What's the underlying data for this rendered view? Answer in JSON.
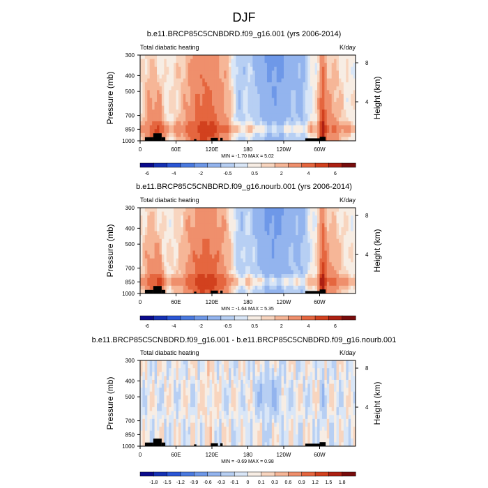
{
  "chart_data": {
    "type": "heatmap",
    "suptitle": "DJF",
    "panels": [
      {
        "title": "b.e11.BRCP85C5CNBDRD.f09_g16.001 (yrs 2006-2014)",
        "left_label": "Total diabatic heating",
        "right_label": "K/day",
        "ylabel": "Pressure (mb)",
        "y2label": "Height (km)",
        "min_max": "MIN =  -1.70  MAX =   5.02",
        "kind": "full",
        "seed": 1,
        "cb_ticks": [
          "-6",
          "-4",
          "-2",
          "-0.5",
          "0.5",
          "2",
          "4",
          "6"
        ],
        "cb_levels": [
          -6,
          -5,
          -4,
          -3,
          -2,
          -1,
          -0.5,
          -0.2,
          0.2,
          0.5,
          1,
          2,
          3,
          4,
          5,
          6
        ]
      },
      {
        "title": "b.e11.BRCP85C5CNBDRD.f09_g16.nourb.001 (yrs 2006-2014)",
        "left_label": "Total diabatic heating",
        "right_label": "K/day",
        "ylabel": "Pressure (mb)",
        "y2label": "Height (km)",
        "min_max": "MIN =  -1.64  MAX =   5.35",
        "kind": "full",
        "seed": 2,
        "cb_ticks": [
          "-6",
          "-4",
          "-2",
          "-0.5",
          "0.5",
          "2",
          "4",
          "6"
        ],
        "cb_levels": [
          -6,
          -5,
          -4,
          -3,
          -2,
          -1,
          -0.5,
          -0.2,
          0.2,
          0.5,
          1,
          2,
          3,
          4,
          5,
          6
        ]
      },
      {
        "title": "b.e11.BRCP85C5CNBDRD.f09_g16.001 - b.e11.BRCP85C5CNBDRD.f09_g16.nourb.001",
        "left_label": "Total diabatic heating",
        "right_label": "K/day",
        "ylabel": "Pressure (mb)",
        "y2label": "Height (km)",
        "min_max": "MIN =  -0.69  MAX =   0.98",
        "kind": "diff",
        "seed": 3,
        "cb_ticks": [
          "-1.8",
          "-1.5",
          "-1.2",
          "-0.9",
          "-0.6",
          "-0.3",
          "-0.1",
          "0",
          "0.1",
          "0.3",
          "0.6",
          "0.9",
          "1.2",
          "1.5",
          "1.8"
        ],
        "cb_levels": [
          -1.8,
          -1.5,
          -1.2,
          -0.9,
          -0.6,
          -0.3,
          -0.1,
          0,
          0.1,
          0.3,
          0.6,
          0.9,
          1.2,
          1.5,
          1.8
        ]
      }
    ],
    "x_ticks": [
      "0",
      "60E",
      "120E",
      "180",
      "120W",
      "60W"
    ],
    "x_tick_values": [
      0,
      60,
      120,
      180,
      240,
      300
    ],
    "xlim": [
      0,
      360
    ],
    "y_ticks": [
      "300",
      "400",
      "500",
      "700",
      "850",
      "1000"
    ],
    "y_tick_values": [
      300,
      400,
      500,
      700,
      850,
      1000
    ],
    "ylim": [
      1000,
      300
    ],
    "y2_ticks": [
      "8",
      "4"
    ],
    "y2_tick_values": [
      8,
      4
    ],
    "colors": [
      "#0a0a8c",
      "#1531b4",
      "#2a56d6",
      "#4a7ae0",
      "#6e98e8",
      "#93b4ee",
      "#b7cff3",
      "#d9e6f7",
      "#f7ede4",
      "#f8d5bf",
      "#f6b697",
      "#ef8f6c",
      "#e5663f",
      "#d2411e",
      "#ad2012",
      "#780c0c"
    ]
  }
}
